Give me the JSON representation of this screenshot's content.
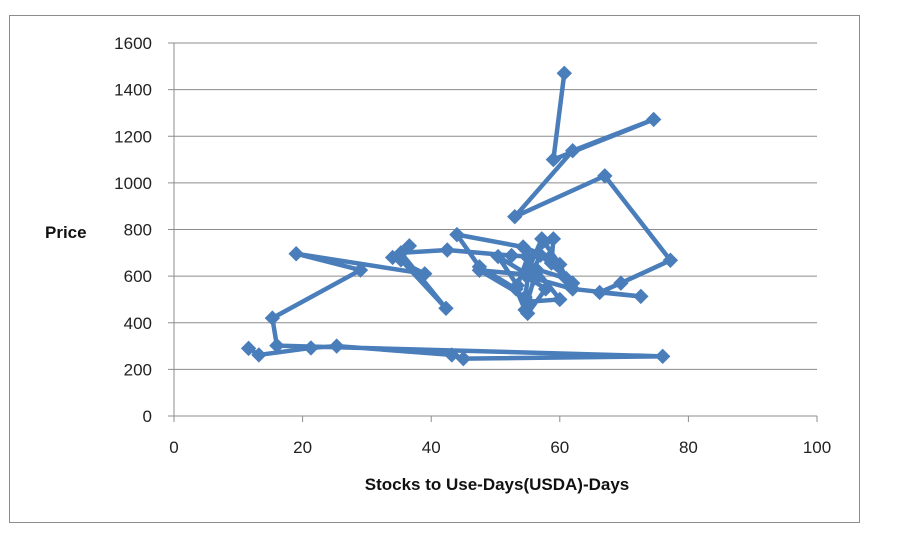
{
  "chart_data": {
    "type": "line",
    "title": "",
    "xlabel": "Stocks to Use-Days(USDA)-Days",
    "ylabel": "Price",
    "xlim": [
      0,
      100
    ],
    "ylim": [
      0,
      1600
    ],
    "x_ticks": [
      0,
      20,
      40,
      60,
      80,
      100
    ],
    "y_ticks": [
      0,
      200,
      400,
      600,
      800,
      1000,
      1200,
      1400,
      1600
    ],
    "grid": "horizontal",
    "line_color": "#4a7ebb",
    "marker": "diamond",
    "series": [
      {
        "points": [
          [
            11.6,
            290
          ],
          [
            13.2,
            262
          ],
          [
            21.3,
            292
          ],
          [
            25.3,
            300
          ],
          [
            43.2,
            262
          ],
          [
            45.0,
            246
          ],
          [
            76.0,
            256
          ],
          [
            16.0,
            302
          ],
          [
            15.3,
            420
          ],
          [
            29.0,
            626
          ],
          [
            19.0,
            696
          ],
          [
            39.0,
            610
          ],
          [
            34.0,
            680
          ],
          [
            36.6,
            730
          ],
          [
            35.3,
            670
          ],
          [
            42.3,
            462
          ],
          [
            35.3,
            700
          ],
          [
            42.5,
            712
          ],
          [
            52.5,
            688
          ],
          [
            58.4,
            680
          ],
          [
            54.3,
            725
          ],
          [
            44.0,
            778
          ],
          [
            47.5,
            640
          ],
          [
            53.2,
            545
          ],
          [
            54.6,
            455
          ],
          [
            56.0,
            590
          ],
          [
            50.4,
            684
          ],
          [
            53.4,
            560
          ],
          [
            55.0,
            680
          ],
          [
            59.0,
            760
          ],
          [
            58.7,
            656
          ],
          [
            62.0,
            570
          ],
          [
            57.0,
            690
          ],
          [
            55.5,
            605
          ],
          [
            47.5,
            625
          ],
          [
            54.6,
            510
          ],
          [
            55.3,
            640
          ],
          [
            57.2,
            760
          ],
          [
            60.0,
            650
          ],
          [
            61.0,
            590
          ],
          [
            56.3,
            630
          ],
          [
            60.0,
            500
          ],
          [
            55.0,
            490
          ],
          [
            55.0,
            440
          ],
          [
            57.8,
            545
          ],
          [
            54.8,
            600
          ],
          [
            62.0,
            545
          ],
          [
            72.6,
            513
          ],
          [
            66.2,
            530
          ],
          [
            69.5,
            570
          ],
          [
            77.2,
            668
          ],
          [
            67.0,
            1030
          ],
          [
            53.0,
            855
          ],
          [
            62.0,
            1138
          ],
          [
            74.6,
            1272
          ],
          [
            59.0,
            1100
          ],
          [
            60.7,
            1470
          ]
        ]
      }
    ]
  }
}
